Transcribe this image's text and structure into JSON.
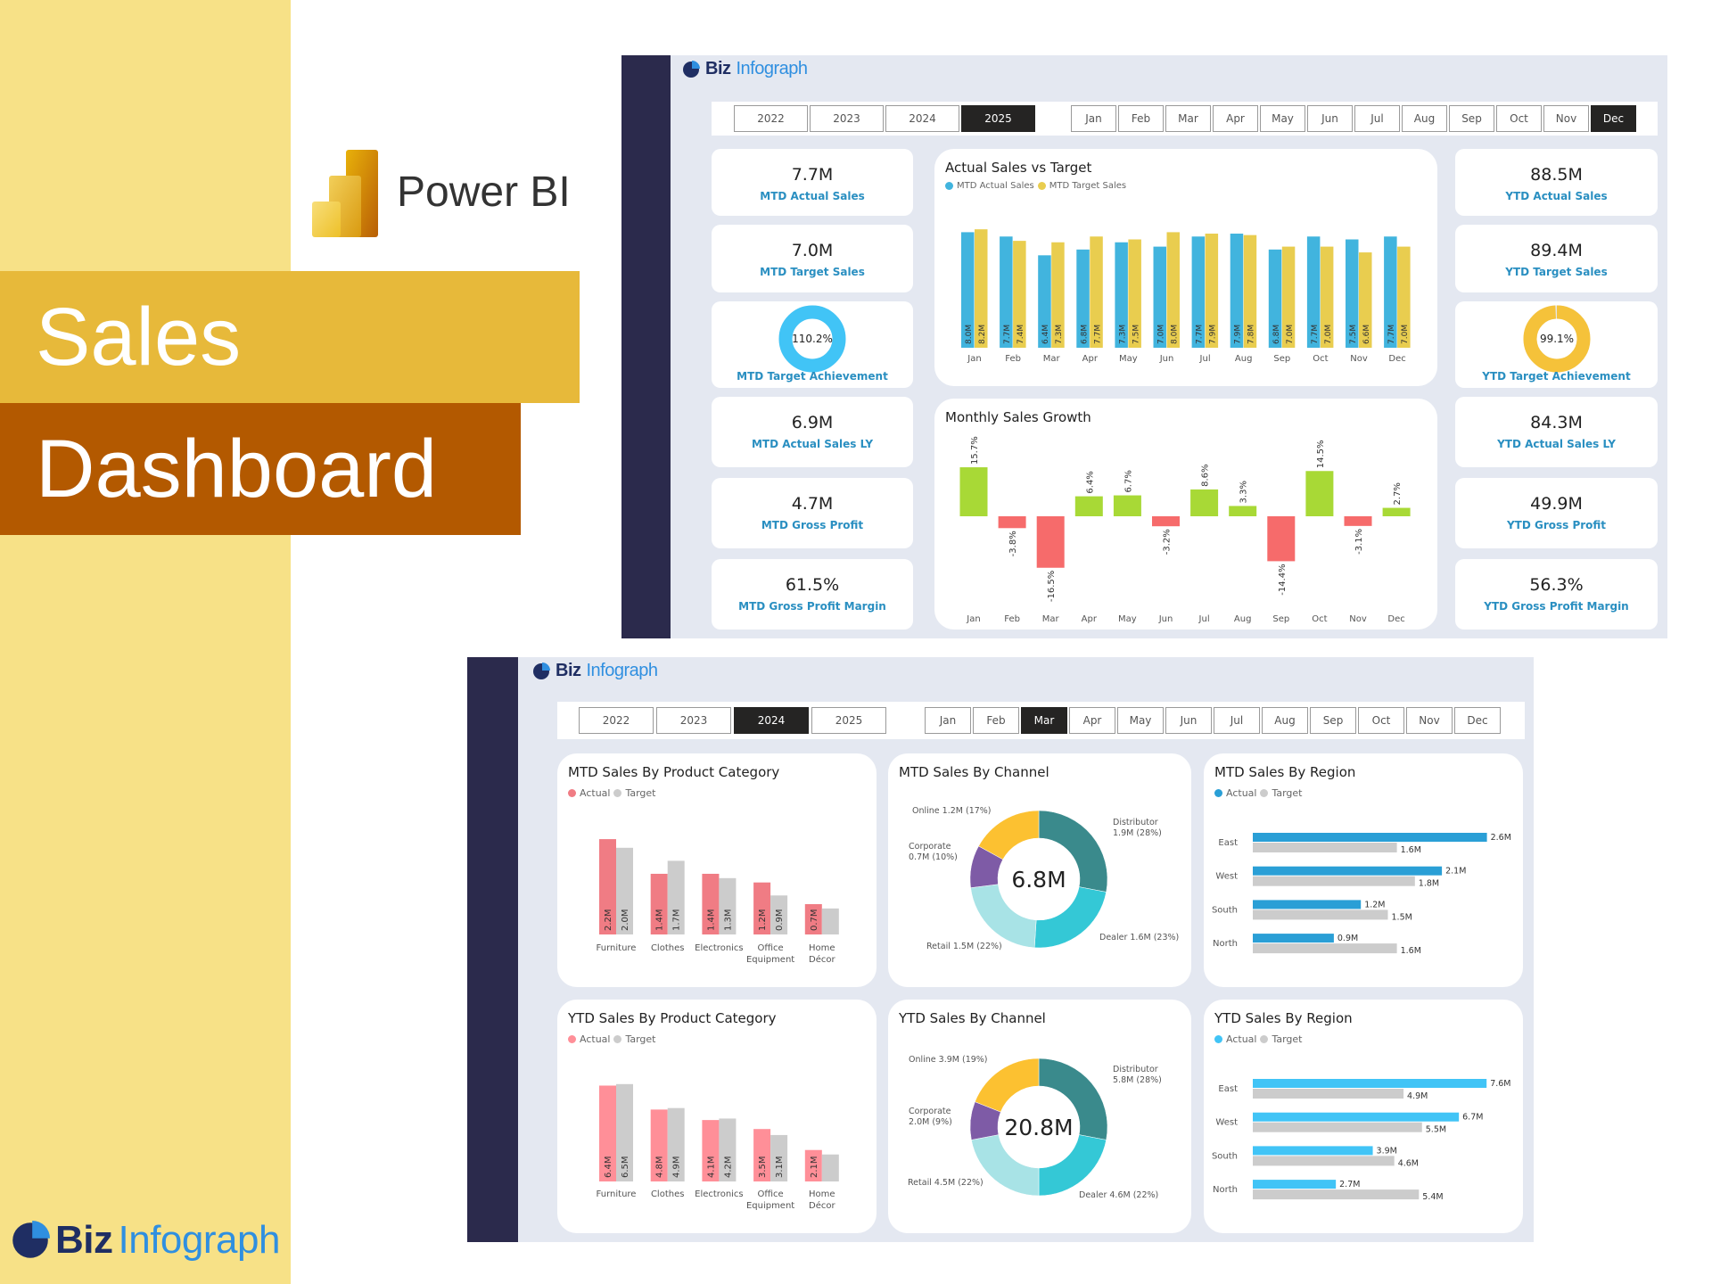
{
  "hero": {
    "powerbi_label": "Power BI",
    "title_line1": "Sales",
    "title_line2": "Dashboard",
    "brand_biz": "Biz",
    "brand_infograph": "Infograph"
  },
  "colors": {
    "strip": "#F7E187",
    "sales_band": "#E7B93A",
    "dashboard_band": "#B35900",
    "sidebar": "#2B2A4C",
    "canvas": "#E4E8F1",
    "kpi_label": "#2A8FC1",
    "actual_blue": "#41B4DE",
    "target_yellow": "#E9CD4F",
    "growth_pos": "#A8D936",
    "growth_neg": "#F66B6B",
    "cat_actual": "#F07C84",
    "cat_target": "#CCCCCC",
    "region_actual_mtd": "#2A9FD6",
    "region_actual_ytd": "#41C4F6",
    "mtd_gauge": "#41C4F6",
    "ytd_gauge": "#F5C23A"
  },
  "dash1": {
    "brand_biz": "Biz",
    "brand_infograph": "Infograph",
    "years": [
      "2022",
      "2023",
      "2024",
      "2025"
    ],
    "selected_year": "2025",
    "months": [
      "Jan",
      "Feb",
      "Mar",
      "Apr",
      "May",
      "Jun",
      "Jul",
      "Aug",
      "Sep",
      "Oct",
      "Nov",
      "Dec"
    ],
    "selected_month": "Dec",
    "kpi_left": [
      {
        "value": "7.7M",
        "label": "MTD Actual Sales"
      },
      {
        "value": "7.0M",
        "label": "MTD Target Sales"
      },
      {
        "value": "110.2%",
        "label": "MTD Target Achievement",
        "gauge_percent": 110.2
      },
      {
        "value": "6.9M",
        "label": "MTD Actual Sales LY"
      },
      {
        "value": "4.7M",
        "label": "MTD Gross Profit"
      },
      {
        "value": "61.5%",
        "label": "MTD Gross Profit Margin"
      }
    ],
    "kpi_right": [
      {
        "value": "88.5M",
        "label": "YTD Actual Sales"
      },
      {
        "value": "89.4M",
        "label": "YTD Target Sales"
      },
      {
        "value": "99.1%",
        "label": "YTD Target Achievement",
        "gauge_percent": 99.1
      },
      {
        "value": "84.3M",
        "label": "YTD Actual Sales LY"
      },
      {
        "value": "49.9M",
        "label": "YTD Gross Profit"
      },
      {
        "value": "56.3%",
        "label": "YTD Gross Profit Margin"
      }
    ]
  },
  "dash2": {
    "brand_biz": "Biz",
    "brand_infograph": "Infograph",
    "years": [
      "2022",
      "2023",
      "2024",
      "2025"
    ],
    "selected_year": "2024",
    "months": [
      "Jan",
      "Feb",
      "Mar",
      "Apr",
      "May",
      "Jun",
      "Jul",
      "Aug",
      "Sep",
      "Oct",
      "Nov",
      "Dec"
    ],
    "selected_month": "Mar"
  },
  "chart_data": [
    {
      "id": "actual-vs-target",
      "type": "bar",
      "title": "Actual Sales vs Target",
      "unit": "M",
      "categories": [
        "Jan",
        "Feb",
        "Mar",
        "Apr",
        "May",
        "Jun",
        "Jul",
        "Aug",
        "Sep",
        "Oct",
        "Nov",
        "Dec"
      ],
      "series": [
        {
          "name": "MTD Actual Sales",
          "color": "#41B4DE",
          "values": [
            8.0,
            7.7,
            6.4,
            6.8,
            7.3,
            7.0,
            7.7,
            7.9,
            6.8,
            7.7,
            7.5,
            7.7
          ]
        },
        {
          "name": "MTD Target Sales",
          "color": "#E9CD4F",
          "values": [
            8.2,
            7.4,
            7.3,
            7.7,
            7.5,
            8.0,
            7.9,
            7.8,
            7.0,
            7.0,
            6.6,
            7.0
          ]
        }
      ],
      "legend": "top-left",
      "grid": false
    },
    {
      "id": "monthly-growth",
      "type": "bar",
      "title": "Monthly Sales Growth",
      "unit": "%",
      "categories": [
        "Jan",
        "Feb",
        "Mar",
        "Apr",
        "May",
        "Jun",
        "Jul",
        "Aug",
        "Sep",
        "Oct",
        "Nov",
        "Dec"
      ],
      "values": [
        15.7,
        -3.8,
        -16.5,
        6.4,
        6.7,
        -3.2,
        8.6,
        3.3,
        -14.4,
        14.5,
        -3.1,
        2.7
      ],
      "grid": false
    },
    {
      "id": "mtd-category",
      "type": "bar",
      "title": "MTD Sales By Product Category",
      "unit": "M",
      "categories": [
        "Furniture",
        "Clothes",
        "Electronics",
        "Office Equipment",
        "Home Décor"
      ],
      "series": [
        {
          "name": "Actual",
          "color": "#F07C84",
          "values": [
            2.2,
            1.4,
            1.4,
            1.2,
            0.7
          ],
          "labeled": [
            true,
            true,
            true,
            true,
            true
          ]
        },
        {
          "name": "Target",
          "color": "#CCCCCC",
          "values": [
            2.0,
            1.7,
            1.3,
            0.9,
            0.6
          ],
          "labeled": [
            true,
            true,
            true,
            true,
            false
          ]
        }
      ],
      "legend": "top-left"
    },
    {
      "id": "mtd-channel",
      "type": "pie",
      "title": "MTD Sales By Channel",
      "center_label": "6.8M",
      "unit": "M",
      "slices": [
        {
          "name": "Distributor",
          "value": 1.9,
          "percent": 28,
          "color": "#3A8A8C"
        },
        {
          "name": "Dealer",
          "value": 1.6,
          "percent": 23,
          "color": "#34C8D6"
        },
        {
          "name": "Retail",
          "value": 1.5,
          "percent": 22,
          "color": "#A8E3E6"
        },
        {
          "name": "Corporate",
          "value": 0.7,
          "percent": 10,
          "color": "#7E5BA6"
        },
        {
          "name": "Online",
          "value": 1.2,
          "percent": 17,
          "color": "#FCC131"
        }
      ]
    },
    {
      "id": "mtd-region",
      "type": "bar",
      "orientation": "horizontal",
      "title": "MTD Sales By Region",
      "unit": "M",
      "categories": [
        "East",
        "West",
        "South",
        "North"
      ],
      "series": [
        {
          "name": "Actual",
          "color": "#2A9FD6",
          "values": [
            2.6,
            2.1,
            1.2,
            0.9
          ]
        },
        {
          "name": "Target",
          "color": "#CCCCCC",
          "values": [
            1.6,
            1.8,
            1.5,
            1.6
          ]
        }
      ],
      "legend": "top-left"
    },
    {
      "id": "ytd-category",
      "type": "bar",
      "title": "YTD Sales By Product Category",
      "unit": "M",
      "categories": [
        "Furniture",
        "Clothes",
        "Electronics",
        "Office Equipment",
        "Home Décor"
      ],
      "series": [
        {
          "name": "Actual",
          "color": "#FF8F98",
          "values": [
            6.4,
            4.8,
            4.1,
            3.5,
            2.1
          ],
          "labeled": [
            true,
            true,
            true,
            true,
            true
          ]
        },
        {
          "name": "Target",
          "color": "#CCCCCC",
          "values": [
            6.5,
            4.9,
            4.2,
            3.1,
            1.8
          ],
          "labeled": [
            true,
            true,
            true,
            true,
            false
          ]
        }
      ],
      "legend": "top-left"
    },
    {
      "id": "ytd-channel",
      "type": "pie",
      "title": "YTD Sales By Channel",
      "center_label": "20.8M",
      "unit": "M",
      "slices": [
        {
          "name": "Distributor",
          "value": 5.8,
          "percent": 28,
          "color": "#3A8A8C"
        },
        {
          "name": "Dealer",
          "value": 4.6,
          "percent": 22,
          "color": "#34C8D6"
        },
        {
          "name": "Retail",
          "value": 4.5,
          "percent": 22,
          "color": "#A8E3E6"
        },
        {
          "name": "Corporate",
          "value": 2.0,
          "percent": 9,
          "color": "#7E5BA6"
        },
        {
          "name": "Online",
          "value": 3.9,
          "percent": 19,
          "color": "#FCC131"
        }
      ]
    },
    {
      "id": "ytd-region",
      "type": "bar",
      "orientation": "horizontal",
      "title": "YTD Sales By Region",
      "unit": "M",
      "categories": [
        "East",
        "West",
        "South",
        "North"
      ],
      "series": [
        {
          "name": "Actual",
          "color": "#41C4F6",
          "values": [
            7.6,
            6.7,
            3.9,
            2.7
          ]
        },
        {
          "name": "Target",
          "color": "#CCCCCC",
          "values": [
            4.9,
            5.5,
            4.6,
            5.4
          ]
        }
      ],
      "legend": "top-left"
    }
  ]
}
